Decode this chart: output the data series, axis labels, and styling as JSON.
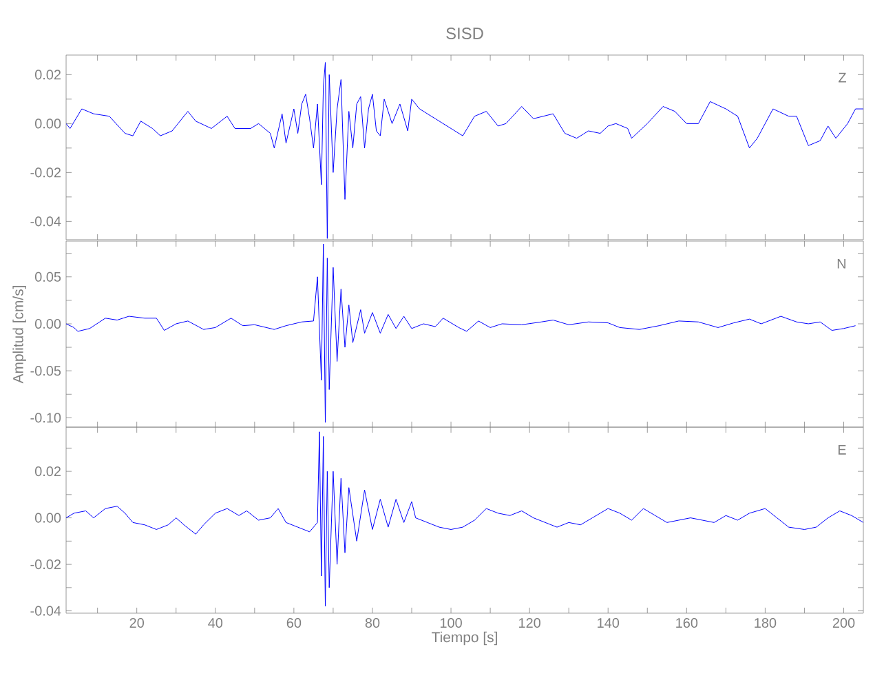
{
  "chart_data": [
    {
      "type": "line",
      "title": "SISD",
      "annotations": [
        "Z"
      ],
      "tick_labels": "y",
      "x": [
        2,
        3,
        6,
        9,
        13,
        17,
        19,
        21,
        24,
        26,
        29,
        33,
        35,
        39,
        43,
        45,
        49,
        51,
        54,
        55,
        57,
        58,
        60,
        61,
        62,
        63,
        64,
        65,
        66,
        67,
        67.5,
        68,
        68.5,
        69,
        70,
        71,
        72,
        73,
        74,
        75,
        76,
        77,
        78,
        79,
        80,
        81,
        82,
        83,
        85,
        87,
        89,
        90,
        92,
        96,
        100,
        103,
        106,
        109,
        112,
        114,
        118,
        121,
        126,
        129,
        132,
        135,
        138,
        140,
        142,
        145,
        146,
        150,
        154,
        157,
        160,
        163,
        166,
        170,
        173,
        176,
        178,
        182,
        186,
        188,
        191,
        194,
        196,
        198,
        201,
        203,
        205
      ],
      "series": [
        {
          "color": "#0000ff",
          "values": [
            0,
            -0.002,
            0.006,
            0.004,
            0.003,
            -0.004,
            -0.005,
            0.001,
            -0.002,
            -0.005,
            -0.003,
            0.005,
            0.001,
            -0.002,
            0.003,
            -0.002,
            -0.002,
            0,
            -0.004,
            -0.01,
            0.004,
            -0.008,
            0.006,
            -0.004,
            0.008,
            0.012,
            0.002,
            -0.01,
            0.008,
            -0.025,
            0.015,
            0.025,
            -0.047,
            0.02,
            -0.02,
            0.006,
            0.018,
            -0.031,
            0.005,
            -0.01,
            0.008,
            0.011,
            -0.01,
            0.006,
            0.012,
            -0.003,
            -0.005,
            0.01,
            0,
            0.008,
            -0.003,
            0.01,
            0.006,
            0.002,
            -0.002,
            -0.005,
            0.003,
            0.005,
            -0.001,
            0,
            0.007,
            0.002,
            0.004,
            -0.004,
            -0.006,
            -0.003,
            -0.004,
            -0.001,
            0,
            -0.002,
            -0.006,
            0,
            0.007,
            0.005,
            0,
            0,
            0.009,
            0.006,
            0.003,
            -0.01,
            -0.006,
            0.006,
            0.003,
            0.003,
            -0.009,
            -0.007,
            -0.001,
            -0.006,
            0,
            0.006,
            0.006
          ]
        }
      ],
      "xlim": [
        2,
        205
      ],
      "ylim": [
        -0.0475,
        0.028
      ],
      "xticks": [
        {
          "value": 10,
          "label": null
        },
        20,
        {
          "value": 30,
          "label": null
        },
        40,
        {
          "value": 50,
          "label": null
        },
        60,
        {
          "value": 70,
          "label": null
        },
        80,
        {
          "value": 90,
          "label": null
        },
        100,
        {
          "value": 110,
          "label": null
        },
        120,
        {
          "value": 130,
          "label": null
        },
        140,
        {
          "value": 150,
          "label": null
        },
        160,
        {
          "value": 170,
          "label": null
        },
        180,
        {
          "value": 190,
          "label": null
        },
        200
      ],
      "yticks": [
        {
          "value": -0.04,
          "label": "-0.04"
        },
        {
          "value": -0.03,
          "label": null
        },
        {
          "value": -0.02,
          "label": "-0.02"
        },
        {
          "value": -0.01,
          "label": null
        },
        {
          "value": 0,
          "label": "0.00"
        },
        {
          "value": 0.01,
          "label": null
        },
        {
          "value": 0.02,
          "label": "0.02"
        }
      ]
    },
    {
      "type": "line",
      "ylabel": "Amplitud [cm/s]",
      "annotations": [
        "N"
      ],
      "tick_labels": "y",
      "x": [
        2,
        4,
        5,
        8,
        12,
        15,
        18,
        22,
        25,
        27,
        30,
        33,
        37,
        40,
        44,
        47,
        50,
        55,
        58,
        62,
        65,
        66,
        67,
        67.5,
        68,
        68.5,
        69,
        70,
        71,
        72,
        73,
        74,
        75,
        77,
        78,
        80,
        82,
        84,
        86,
        88,
        90,
        93,
        96,
        98,
        102,
        104,
        107,
        110,
        113,
        118,
        123,
        126,
        130,
        135,
        140,
        143,
        148,
        153,
        158,
        163,
        168,
        172,
        176,
        179,
        184,
        188,
        191,
        194,
        197,
        200,
        203
      ],
      "series": [
        {
          "color": "#0000ff",
          "values": [
            0,
            -0.004,
            -0.008,
            -0.005,
            0.006,
            0.004,
            0.008,
            0.006,
            0.006,
            -0.007,
            0,
            0.003,
            -0.006,
            -0.004,
            0.006,
            -0.002,
            -0.001,
            -0.006,
            -0.002,
            0.002,
            0.003,
            0.05,
            -0.06,
            0.085,
            -0.105,
            0.07,
            -0.07,
            0.06,
            -0.04,
            0.037,
            -0.025,
            0.02,
            -0.02,
            0.015,
            -0.01,
            0.012,
            -0.01,
            0.01,
            -0.005,
            0.008,
            -0.005,
            0,
            -0.003,
            0.006,
            -0.004,
            -0.008,
            0.003,
            -0.004,
            0,
            -0.001,
            0.002,
            0.004,
            -0.001,
            0.002,
            0.001,
            -0.004,
            -0.006,
            -0.002,
            0.003,
            0.002,
            -0.004,
            0.001,
            0.005,
            0,
            0.008,
            0.002,
            0,
            0.002,
            -0.007,
            -0.005,
            -0.002
          ]
        }
      ],
      "xlim": [
        2,
        205
      ],
      "ylim": [
        -0.11,
        0.088
      ],
      "xticks": [
        {
          "value": 10,
          "label": null
        },
        20,
        {
          "value": 30,
          "label": null
        },
        40,
        {
          "value": 50,
          "label": null
        },
        60,
        {
          "value": 70,
          "label": null
        },
        80,
        {
          "value": 90,
          "label": null
        },
        100,
        {
          "value": 110,
          "label": null
        },
        120,
        {
          "value": 130,
          "label": null
        },
        140,
        {
          "value": 150,
          "label": null
        },
        160,
        {
          "value": 170,
          "label": null
        },
        180,
        {
          "value": 190,
          "label": null
        },
        200
      ],
      "yticks": [
        {
          "value": -0.1,
          "label": "-0.10"
        },
        {
          "value": -0.075,
          "label": null
        },
        {
          "value": -0.05,
          "label": "-0.05"
        },
        {
          "value": -0.025,
          "label": null
        },
        {
          "value": 0,
          "label": "0.00"
        },
        {
          "value": 0.025,
          "label": null
        },
        {
          "value": 0.05,
          "label": "0.05"
        },
        {
          "value": 0.075,
          "label": null
        }
      ]
    },
    {
      "type": "line",
      "xlabel": "Tiempo [s]",
      "annotations": [
        "E"
      ],
      "x": [
        2,
        4,
        7,
        9,
        12,
        15,
        17,
        19,
        22,
        25,
        28,
        30,
        32,
        35,
        37,
        40,
        43,
        46,
        48,
        51,
        54,
        56,
        58,
        61,
        64,
        66,
        66.5,
        67,
        67.5,
        68,
        68.5,
        69,
        70,
        71,
        72,
        73,
        74,
        76,
        78,
        80,
        82,
        84,
        86,
        88,
        90,
        91,
        94,
        97,
        100,
        103,
        106,
        109,
        112,
        115,
        118,
        121,
        124,
        127,
        130,
        133,
        136,
        140,
        143,
        146,
        149,
        152,
        155,
        158,
        161,
        164,
        167,
        170,
        173,
        176,
        180,
        183,
        186,
        190,
        193,
        196,
        199,
        202,
        205
      ],
      "series": [
        {
          "color": "#0000ff",
          "values": [
            0,
            0.002,
            0.003,
            0,
            0.004,
            0.005,
            0.002,
            -0.002,
            -0.003,
            -0.005,
            -0.003,
            0,
            -0.003,
            -0.007,
            -0.003,
            0.002,
            0.004,
            0.001,
            0.003,
            -0.001,
            0,
            0.004,
            -0.002,
            -0.004,
            -0.006,
            -0.002,
            0.037,
            -0.025,
            0.035,
            -0.038,
            0.02,
            -0.03,
            0.02,
            -0.02,
            0.017,
            -0.015,
            0.013,
            -0.01,
            0.012,
            -0.005,
            0.008,
            -0.004,
            0.008,
            -0.002,
            0.007,
            0,
            -0.002,
            -0.004,
            -0.005,
            -0.004,
            -0.001,
            0.004,
            0.002,
            0.001,
            0.003,
            0,
            -0.002,
            -0.004,
            -0.002,
            -0.003,
            0,
            0.004,
            0.002,
            -0.001,
            0.004,
            0.001,
            -0.002,
            -0.001,
            0,
            -0.001,
            -0.002,
            0.001,
            -0.001,
            0.002,
            0.004,
            0,
            -0.004,
            -0.005,
            -0.004,
            0,
            0.003,
            0.001,
            -0.002
          ]
        }
      ],
      "xlim": [
        2,
        205
      ],
      "ylim": [
        -0.041,
        0.039
      ],
      "xticks": [
        {
          "value": 10,
          "label": null
        },
        20,
        {
          "value": 30,
          "label": null
        },
        40,
        {
          "value": 50,
          "label": null
        },
        60,
        {
          "value": 70,
          "label": null
        },
        80,
        {
          "value": 90,
          "label": null
        },
        100,
        {
          "value": 110,
          "label": null
        },
        120,
        {
          "value": 130,
          "label": null
        },
        140,
        {
          "value": 150,
          "label": null
        },
        160,
        {
          "value": 170,
          "label": null
        },
        180,
        {
          "value": 190,
          "label": null
        },
        200
      ],
      "yticks": [
        {
          "value": -0.04,
          "label": "-0.04"
        },
        {
          "value": -0.03,
          "label": null
        },
        {
          "value": -0.02,
          "label": "-0.02"
        },
        {
          "value": -0.01,
          "label": null
        },
        {
          "value": 0,
          "label": "0.00"
        },
        {
          "value": 0.01,
          "label": null
        },
        {
          "value": 0.02,
          "label": "0.02"
        },
        {
          "value": 0.03,
          "label": null
        }
      ]
    }
  ]
}
